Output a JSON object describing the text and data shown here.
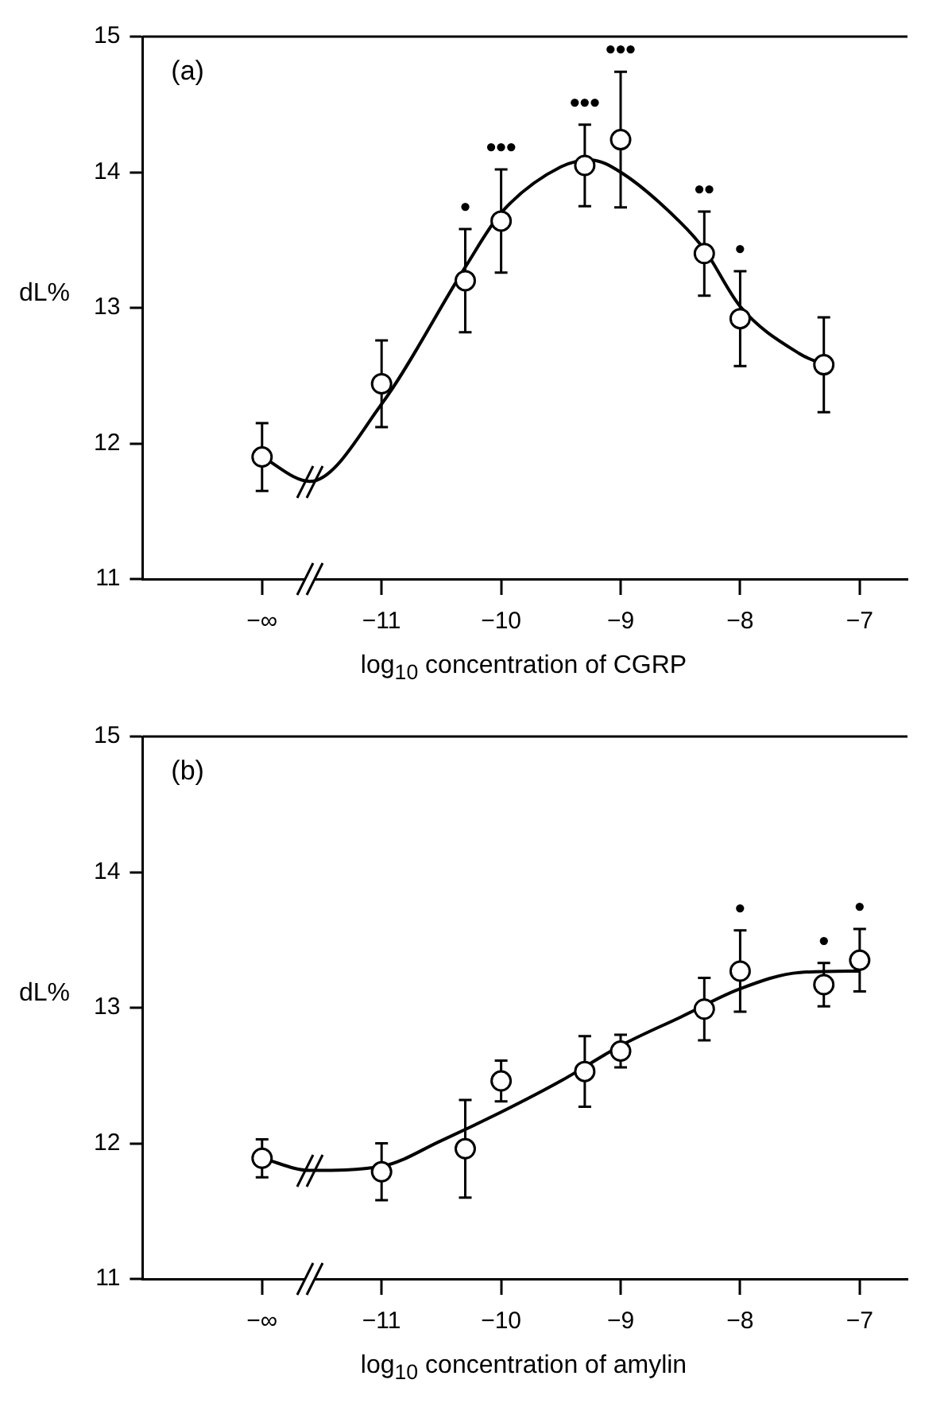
{
  "chart_data": [
    {
      "type": "scatter",
      "xlabel": "log$_{10}$ concentration of CGRP",
      "ylabel": "dL%",
      "xlim": [
        -13,
        -6.6
      ],
      "ylim": [
        11,
        15
      ],
      "xticks": [
        {
          "value": -12,
          "label": "−∞"
        },
        {
          "value": -11,
          "label": "−11"
        },
        {
          "value": -10,
          "label": "−10"
        },
        {
          "value": -9,
          "label": "−9"
        },
        {
          "value": -8,
          "label": "−8"
        },
        {
          "value": -7,
          "label": "−7"
        }
      ],
      "yticks": [
        11,
        12,
        13,
        14,
        15
      ],
      "x": [
        -12,
        -11,
        -10.3,
        -10,
        -9.3,
        -9,
        -8.3,
        -8,
        -7.3
      ],
      "series": [
        {
          "type": "scatter",
          "marker": "circle",
          "color": "#000000",
          "values": [
            11.9,
            12.44,
            13.2,
            13.64,
            14.05,
            14.24,
            13.4,
            12.92,
            12.58
          ],
          "errors": [
            0.25,
            0.32,
            0.38,
            0.38,
            0.3,
            0.5,
            0.31,
            0.35,
            0.35
          ]
        },
        {
          "type": "line",
          "color": "#000000",
          "x": [
            -12,
            -11.6,
            -11,
            -10.3,
            -10,
            -9.5,
            -9.25,
            -9,
            -8.5,
            -8.3,
            -8,
            -7.5,
            -7.3
          ],
          "values": [
            11.9,
            11.72,
            12.29,
            13.3,
            13.7,
            14.04,
            14.09,
            14.0,
            13.63,
            13.43,
            13.01,
            12.66,
            12.58
          ]
        }
      ],
      "annotations": [
        "(a)",
        {
          "text": "•",
          "x": -10.3,
          "y": 13.2
        },
        {
          "text": "•••",
          "x": -10,
          "y": 13.64
        },
        {
          "text": "•••",
          "x": -9.3,
          "y": 14.05
        },
        {
          "text": "•••",
          "x": -9,
          "y": 14.24
        },
        {
          "text": "••",
          "x": -8.3,
          "y": 13.4
        },
        {
          "text": "•",
          "x": -8,
          "y": 12.92
        }
      ]
    },
    {
      "type": "scatter",
      "xlabel": "log$_{10}$ concentration of amylin",
      "ylabel": "dL%",
      "xlim": [
        -13,
        -6.6
      ],
      "ylim": [
        11,
        15
      ],
      "xticks": [
        {
          "value": -12,
          "label": "−∞"
        },
        {
          "value": -11,
          "label": "−11"
        },
        {
          "value": -10,
          "label": "−10"
        },
        {
          "value": -9,
          "label": "−9"
        },
        {
          "value": -8,
          "label": "−8"
        },
        {
          "value": -7,
          "label": "−7"
        }
      ],
      "yticks": [
        11,
        12,
        13,
        14,
        15
      ],
      "x": [
        -12,
        -11,
        -10.3,
        -10,
        -9.3,
        -9,
        -8.3,
        -8,
        -7.3,
        -7
      ],
      "series": [
        {
          "type": "scatter",
          "marker": "circle",
          "color": "#000000",
          "values": [
            11.89,
            11.79,
            11.96,
            12.46,
            12.53,
            12.68,
            12.99,
            13.27,
            13.17,
            13.35
          ],
          "errors": [
            0.14,
            0.21,
            0.36,
            0.15,
            0.26,
            0.12,
            0.23,
            0.3,
            0.16,
            0.23
          ]
        },
        {
          "type": "line",
          "color": "#000000",
          "x": [
            -12,
            -11.6,
            -11,
            -10.5,
            -10,
            -9.5,
            -9,
            -8.5,
            -8,
            -7.5,
            -7
          ],
          "values": [
            11.89,
            11.8,
            11.83,
            12.02,
            12.23,
            12.46,
            12.72,
            12.93,
            13.14,
            13.26,
            13.27
          ]
        }
      ],
      "annotations": [
        "(b)",
        {
          "text": "•",
          "x": -8,
          "y": 13.27
        },
        {
          "text": "•",
          "x": -7.3,
          "y": 13.17
        },
        {
          "text": "•",
          "x": -7,
          "y": 13.35
        }
      ]
    }
  ]
}
